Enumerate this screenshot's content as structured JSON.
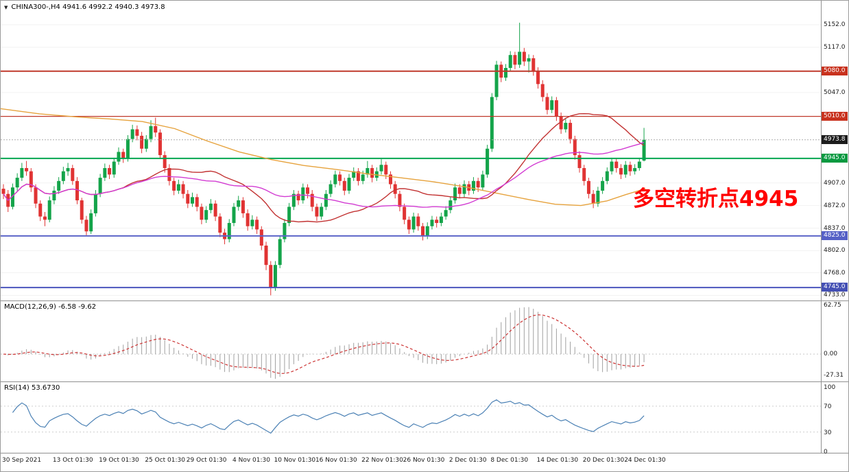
{
  "header": {
    "dropdown_icon": "▼",
    "title": "CHINA300-,H4 4941.6 4992.2 4940.3 4973.8",
    "symbol": "CHINA300-",
    "timeframe": "H4"
  },
  "annotation": {
    "text": "多空转折点4945",
    "color": "#ff0000"
  },
  "colors": {
    "candle_up": "#14a44a",
    "candle_down": "#e03333",
    "background": "#ffffff",
    "panel_border": "#909090",
    "axis_text": "#1a1a1a",
    "grid": "#f2f2f2",
    "current_price_dash": "#aaaaaa"
  },
  "chart_data": [
    {
      "type": "candlestick",
      "title": "CHINA300-,H4",
      "ohlc": {
        "open": 4941.6,
        "high": 4992.2,
        "low": 4940.3,
        "close": 4973.8
      },
      "price_range": [
        4725,
        5170
      ],
      "y_axis": {
        "plain_ticks": [
          {
            "label": "5152.0",
            "price": 5152
          },
          {
            "label": "5117.0",
            "price": 5117
          },
          {
            "label": "5047.0",
            "price": 5047
          },
          {
            "label": "4907.0",
            "price": 4907
          },
          {
            "label": "4872.0",
            "price": 4872
          },
          {
            "label": "4837.0",
            "price": 4837
          },
          {
            "label": "4802.0",
            "price": 4802
          },
          {
            "label": "4768.0",
            "price": 4768
          },
          {
            "label": "4733.0",
            "price": 4733
          }
        ],
        "tags": [
          {
            "label": "5080.0",
            "price": 5080,
            "bg": "#c8321e"
          },
          {
            "label": "5010.0",
            "price": 5010,
            "bg": "#c8321e"
          },
          {
            "label": "4973.8",
            "price": 4973.8,
            "bg": "#1c1c1c"
          },
          {
            "label": "4945.0",
            "price": 4945,
            "bg": "#089940"
          },
          {
            "label": "4825.0",
            "price": 4825,
            "bg": "#5560c6"
          },
          {
            "label": "4745.0",
            "price": 4745,
            "bg": "#4450b4"
          }
        ]
      },
      "hlines": [
        {
          "price": 5080,
          "color": "#c0392b",
          "width": 2
        },
        {
          "price": 5010,
          "color": "#c0392b",
          "width": 1.3
        },
        {
          "price": 4945,
          "color": "#00a651",
          "width": 2
        },
        {
          "price": 4825,
          "color": "#5b64c8",
          "width": 2
        },
        {
          "price": 4745,
          "color": "#4a55bd",
          "width": 2
        }
      ],
      "overlays": [
        {
          "name": "ma-orange",
          "color": "#e6a23c",
          "points": [
            [
              0,
              5022
            ],
            [
              0.06,
              5014
            ],
            [
              0.12,
              5009
            ],
            [
              0.17,
              5006
            ],
            [
              0.22,
              5002
            ],
            [
              0.27,
              4991
            ],
            [
              0.32,
              4972
            ],
            [
              0.37,
              4955
            ],
            [
              0.42,
              4943
            ],
            [
              0.47,
              4934
            ],
            [
              0.52,
              4928
            ],
            [
              0.57,
              4921
            ],
            [
              0.62,
              4915
            ],
            [
              0.67,
              4909
            ],
            [
              0.72,
              4901
            ],
            [
              0.77,
              4891
            ],
            [
              0.82,
              4881
            ],
            [
              0.86,
              4874
            ],
            [
              0.9,
              4872
            ],
            [
              0.94,
              4879
            ],
            [
              0.97,
              4889
            ],
            [
              1,
              4898
            ]
          ]
        },
        {
          "name": "ma-red",
          "color": "#c23232",
          "sma": 26
        },
        {
          "name": "ma-magenta",
          "color": "#d23bd2",
          "sma": 45
        }
      ],
      "candles": [
        [
          4898,
          4905,
          4882,
          4890
        ],
        [
          4890,
          4896,
          4862,
          4870
        ],
        [
          4870,
          4906,
          4866,
          4900
        ],
        [
          4900,
          4922,
          4895,
          4915
        ],
        [
          4915,
          4938,
          4910,
          4930
        ],
        [
          4930,
          4941,
          4918,
          4925
        ],
        [
          4925,
          4930,
          4893,
          4900
        ],
        [
          4900,
          4905,
          4868,
          4875
        ],
        [
          4875,
          4880,
          4848,
          4855
        ],
        [
          4855,
          4862,
          4840,
          4850
        ],
        [
          4850,
          4886,
          4846,
          4880
        ],
        [
          4880,
          4902,
          4874,
          4895
        ],
        [
          4895,
          4916,
          4890,
          4910
        ],
        [
          4910,
          4932,
          4905,
          4925
        ],
        [
          4925,
          4938,
          4918,
          4930
        ],
        [
          4930,
          4935,
          4904,
          4910
        ],
        [
          4910,
          4916,
          4874,
          4880
        ],
        [
          4880,
          4884,
          4844,
          4850
        ],
        [
          4850,
          4856,
          4826,
          4832
        ],
        [
          4832,
          4866,
          4828,
          4860
        ],
        [
          4860,
          4896,
          4855,
          4890
        ],
        [
          4890,
          4921,
          4885,
          4915
        ],
        [
          4915,
          4937,
          4910,
          4930
        ],
        [
          4930,
          4935,
          4913,
          4920
        ],
        [
          4920,
          4946,
          4915,
          4940
        ],
        [
          4940,
          4962,
          4935,
          4955
        ],
        [
          4955,
          4960,
          4938,
          4945
        ],
        [
          4945,
          4981,
          4940,
          4975
        ],
        [
          4975,
          4997,
          4970,
          4990
        ],
        [
          4990,
          4996,
          4973,
          4980
        ],
        [
          4980,
          4986,
          4953,
          4960
        ],
        [
          4960,
          4981,
          4955,
          4975
        ],
        [
          4975,
          5004,
          4970,
          4995
        ],
        [
          4995,
          5008,
          4978,
          4985
        ],
        [
          4985,
          4990,
          4944,
          4950
        ],
        [
          4950,
          4956,
          4923,
          4930
        ],
        [
          4930,
          4936,
          4903,
          4910
        ],
        [
          4910,
          4915,
          4888,
          4895
        ],
        [
          4895,
          4912,
          4890,
          4905
        ],
        [
          4905,
          4910,
          4883,
          4890
        ],
        [
          4890,
          4896,
          4868,
          4875
        ],
        [
          4875,
          4892,
          4870,
          4885
        ],
        [
          4885,
          4890,
          4863,
          4870
        ],
        [
          4870,
          4875,
          4843,
          4850
        ],
        [
          4850,
          4871,
          4845,
          4865
        ],
        [
          4865,
          4882,
          4860,
          4875
        ],
        [
          4875,
          4880,
          4848,
          4855
        ],
        [
          4855,
          4860,
          4823,
          4830
        ],
        [
          4830,
          4836,
          4812,
          4820
        ],
        [
          4820,
          4851,
          4815,
          4845
        ],
        [
          4845,
          4876,
          4840,
          4870
        ],
        [
          4870,
          4887,
          4864,
          4880
        ],
        [
          4880,
          4885,
          4853,
          4860
        ],
        [
          4860,
          4866,
          4833,
          4840
        ],
        [
          4840,
          4857,
          4835,
          4850
        ],
        [
          4850,
          4855,
          4828,
          4835
        ],
        [
          4835,
          4840,
          4803,
          4810
        ],
        [
          4810,
          4816,
          4772,
          4780
        ],
        [
          4780,
          4786,
          4733,
          4745
        ],
        [
          4745,
          4786,
          4740,
          4780
        ],
        [
          4780,
          4826,
          4775,
          4820
        ],
        [
          4820,
          4851,
          4815,
          4845
        ],
        [
          4845,
          4876,
          4840,
          4870
        ],
        [
          4870,
          4896,
          4865,
          4890
        ],
        [
          4890,
          4895,
          4873,
          4880
        ],
        [
          4880,
          4906,
          4875,
          4900
        ],
        [
          4900,
          4905,
          4883,
          4890
        ],
        [
          4890,
          4896,
          4863,
          4870
        ],
        [
          4870,
          4875,
          4848,
          4855
        ],
        [
          4855,
          4876,
          4850,
          4870
        ],
        [
          4870,
          4896,
          4865,
          4890
        ],
        [
          4890,
          4911,
          4885,
          4905
        ],
        [
          4905,
          4926,
          4900,
          4920
        ],
        [
          4920,
          4925,
          4903,
          4910
        ],
        [
          4910,
          4915,
          4888,
          4895
        ],
        [
          4895,
          4921,
          4890,
          4915
        ],
        [
          4915,
          4931,
          4910,
          4925
        ],
        [
          4925,
          4930,
          4903,
          4910
        ],
        [
          4910,
          4926,
          4905,
          4920
        ],
        [
          4920,
          4941,
          4915,
          4930
        ],
        [
          4930,
          4935,
          4908,
          4915
        ],
        [
          4915,
          4931,
          4910,
          4925
        ],
        [
          4925,
          4944,
          4920,
          4935
        ],
        [
          4935,
          4940,
          4913,
          4920
        ],
        [
          4920,
          4925,
          4898,
          4905
        ],
        [
          4905,
          4910,
          4883,
          4890
        ],
        [
          4890,
          4895,
          4863,
          4870
        ],
        [
          4870,
          4875,
          4843,
          4850
        ],
        [
          4850,
          4855,
          4828,
          4835
        ],
        [
          4835,
          4861,
          4830,
          4855
        ],
        [
          4855,
          4860,
          4833,
          4840
        ],
        [
          4840,
          4845,
          4818,
          4825
        ],
        [
          4825,
          4846,
          4820,
          4840
        ],
        [
          4840,
          4856,
          4835,
          4850
        ],
        [
          4850,
          4855,
          4838,
          4845
        ],
        [
          4845,
          4861,
          4840,
          4855
        ],
        [
          4855,
          4871,
          4850,
          4865
        ],
        [
          4865,
          4886,
          4860,
          4880
        ],
        [
          4880,
          4906,
          4875,
          4900
        ],
        [
          4900,
          4905,
          4883,
          4890
        ],
        [
          4890,
          4911,
          4885,
          4905
        ],
        [
          4905,
          4910,
          4888,
          4895
        ],
        [
          4895,
          4916,
          4890,
          4910
        ],
        [
          4910,
          4915,
          4893,
          4900
        ],
        [
          4900,
          4926,
          4895,
          4920
        ],
        [
          4920,
          4966,
          4915,
          4960
        ],
        [
          4960,
          5046,
          4955,
          5040
        ],
        [
          5040,
          5096,
          5035,
          5090
        ],
        [
          5090,
          5095,
          5063,
          5070
        ],
        [
          5070,
          5091,
          5065,
          5085
        ],
        [
          5085,
          5111,
          5080,
          5105
        ],
        [
          5105,
          5110,
          5083,
          5090
        ],
        [
          5090,
          5155,
          5085,
          5110
        ],
        [
          5110,
          5116,
          5088,
          5095
        ],
        [
          5095,
          5106,
          5078,
          5100
        ],
        [
          5100,
          5105,
          5073,
          5080
        ],
        [
          5080,
          5086,
          5053,
          5060
        ],
        [
          5060,
          5066,
          5033,
          5040
        ],
        [
          5040,
          5046,
          5013,
          5020
        ],
        [
          5020,
          5041,
          5015,
          5035
        ],
        [
          5035,
          5040,
          5003,
          5010
        ],
        [
          5010,
          5016,
          4983,
          4990
        ],
        [
          4990,
          5006,
          4985,
          5000
        ],
        [
          5000,
          5005,
          4968,
          4975
        ],
        [
          4975,
          4980,
          4943,
          4950
        ],
        [
          4950,
          4956,
          4923,
          4930
        ],
        [
          4930,
          4935,
          4903,
          4910
        ],
        [
          4910,
          4915,
          4883,
          4890
        ],
        [
          4890,
          4896,
          4868,
          4875
        ],
        [
          4875,
          4901,
          4870,
          4895
        ],
        [
          4895,
          4916,
          4890,
          4910
        ],
        [
          4910,
          4931,
          4905,
          4925
        ],
        [
          4925,
          4946,
          4920,
          4940
        ],
        [
          4940,
          4945,
          4923,
          4930
        ],
        [
          4930,
          4936,
          4913,
          4920
        ],
        [
          4920,
          4941,
          4915,
          4935
        ],
        [
          4935,
          4940,
          4918,
          4925
        ],
        [
          4925,
          4936,
          4920,
          4930
        ],
        [
          4930,
          4946,
          4926,
          4940
        ],
        [
          4941.6,
          4992.2,
          4940.3,
          4973.8
        ]
      ]
    },
    {
      "type": "macd",
      "label": "MACD(12,26,9) -6.58 -9.62",
      "params": [
        12,
        26,
        9
      ],
      "current_values": [
        "-6.58",
        "-9.62"
      ],
      "y_ticks": [
        {
          "label": "62.75",
          "value": 62.75
        },
        {
          "label": "0.00",
          "value": 0
        },
        {
          "label": "-27.31",
          "value": -27.31
        }
      ],
      "range": [
        -36,
        68
      ],
      "histogram_color": "#a0a0a0",
      "signal_color": "#cc3333"
    },
    {
      "type": "rsi",
      "label": "RSI(14) 53.6730",
      "period": 14,
      "current_value": "53.6730",
      "y_ticks": [
        {
          "label": "100",
          "value": 100
        },
        {
          "label": "70",
          "value": 70
        },
        {
          "label": "30",
          "value": 30
        },
        {
          "label": "0",
          "value": 0
        }
      ],
      "levels": [
        70,
        30
      ],
      "range": [
        -3,
        107
      ],
      "line_color": "#4a80b4"
    }
  ],
  "x_axis": {
    "labels": [
      {
        "text": "30 Sep 2021",
        "index": 0
      },
      {
        "text": "13 Oct 01:30",
        "index": 11
      },
      {
        "text": "19 Oct 01:30",
        "index": 21
      },
      {
        "text": "25 Oct 01:30",
        "index": 31
      },
      {
        "text": "29 Oct 01:30",
        "index": 40
      },
      {
        "text": "4 Nov 01:30",
        "index": 50
      },
      {
        "text": "10 Nov 01:30",
        "index": 59
      },
      {
        "text": "16 Nov 01:30",
        "index": 68
      },
      {
        "text": "22 Nov 01:30",
        "index": 78
      },
      {
        "text": "26 Nov 01:30",
        "index": 87
      },
      {
        "text": "2 Dec 01:30",
        "index": 97
      },
      {
        "text": "8 Dec 01:30",
        "index": 106
      },
      {
        "text": "14 Dec 01:30",
        "index": 116
      },
      {
        "text": "20 Dec 01:30",
        "index": 126
      },
      {
        "text": "24 Dec 01:30",
        "index": 135
      }
    ]
  }
}
